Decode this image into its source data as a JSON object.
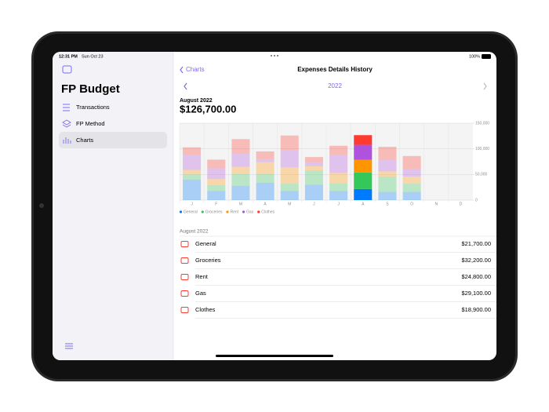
{
  "status_bar": {
    "time": "12:31 PM",
    "date": "Sun Oct 23",
    "battery": "100%"
  },
  "sidebar": {
    "title": "FP Budget",
    "items": [
      "Transactions",
      "FP Method",
      "Charts"
    ]
  },
  "nav": {
    "back": "Charts",
    "title": "Expenses Details History",
    "year": "2022"
  },
  "summary": {
    "period": "August 2022",
    "total": "$126,700.00"
  },
  "chart_data": {
    "type": "bar",
    "stacked": true,
    "selected": 7,
    "categories": [
      "J",
      "F",
      "M",
      "A",
      "M",
      "J",
      "J",
      "A",
      "S",
      "O",
      "N",
      "D"
    ],
    "series": [
      {
        "name": "General",
        "color": "#007aff",
        "values": [
          40000,
          18000,
          28000,
          34000,
          18000,
          30000,
          18000,
          21700,
          16000,
          16000,
          0,
          0
        ]
      },
      {
        "name": "Groceries",
        "color": "#34c759",
        "values": [
          10000,
          11000,
          23000,
          17000,
          14000,
          28000,
          15000,
          32200,
          30000,
          16000,
          0,
          0
        ]
      },
      {
        "name": "Rent",
        "color": "#ff9500",
        "values": [
          9000,
          12000,
          14000,
          23000,
          32000,
          8000,
          20000,
          24800,
          10000,
          14000,
          0,
          0
        ]
      },
      {
        "name": "Gas",
        "color": "#af52de",
        "values": [
          29000,
          21000,
          26000,
          6000,
          34000,
          8000,
          35000,
          29100,
          22000,
          14000,
          0,
          0
        ]
      },
      {
        "name": "Clothes",
        "color": "#ff3b30",
        "values": [
          15000,
          17000,
          28000,
          15000,
          28000,
          10000,
          18000,
          18900,
          26000,
          26000,
          0,
          0
        ]
      }
    ],
    "ylim": [
      0,
      150000
    ],
    "yticks": [
      {
        "value": 0,
        "label": "0"
      },
      {
        "value": 50000,
        "label": "50,000"
      },
      {
        "value": 100000,
        "label": "100,000"
      },
      {
        "value": 150000,
        "label": "150,000"
      }
    ],
    "grid": true
  },
  "list": {
    "header": "August 2022",
    "rows": [
      {
        "name": "General",
        "amount": "$21,700.00"
      },
      {
        "name": "Groceries",
        "amount": "$32,200.00"
      },
      {
        "name": "Rent",
        "amount": "$24,800.00"
      },
      {
        "name": "Gas",
        "amount": "$29,100.00"
      },
      {
        "name": "Clothes",
        "amount": "$18,900.00"
      }
    ]
  }
}
